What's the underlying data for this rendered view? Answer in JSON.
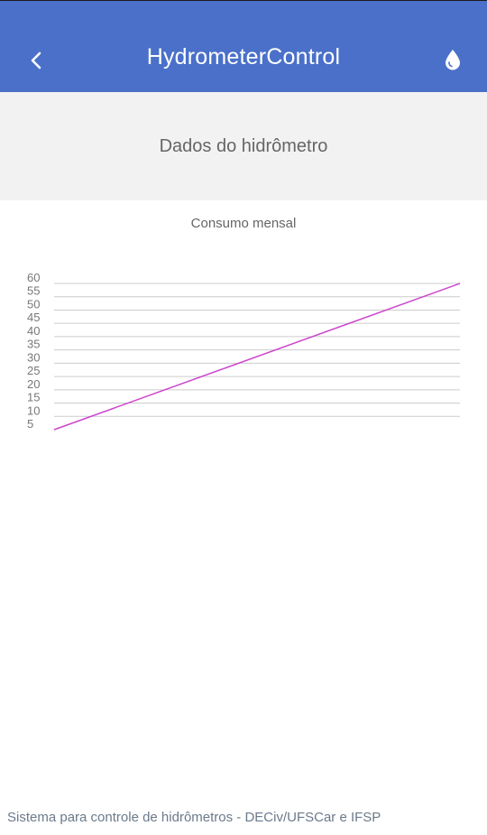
{
  "appbar": {
    "title": "HydrometerControl",
    "back_icon": "chevron-left-icon",
    "action_icon": "water-drop-icon"
  },
  "section": {
    "title": "Dados do hidrômetro"
  },
  "chart_data": {
    "type": "line",
    "title": "Consumo mensal",
    "xlabel": "",
    "ylabel": "",
    "y_ticks": [
      "5",
      "10",
      "15",
      "20",
      "25",
      "30",
      "35",
      "40",
      "45",
      "50",
      "55",
      "60"
    ],
    "ylim": [
      5,
      60
    ],
    "grid": true,
    "series": [
      {
        "color": "#cc44cc",
        "points": [
          [
            0,
            0
          ],
          [
            1,
            60
          ]
        ]
      }
    ]
  },
  "footer": {
    "text": "Sistema para controle de hidrômetros - DECiv/UFSCar e IFSP"
  },
  "colors": {
    "appbar": "#4a70c9",
    "line": "#cc44cc",
    "grid": "#cccccc"
  }
}
